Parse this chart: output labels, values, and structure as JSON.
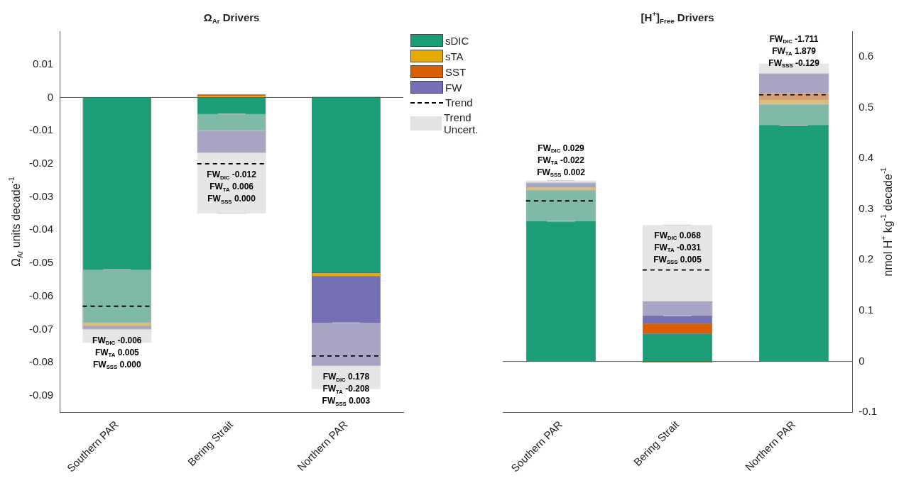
{
  "chart_data": [
    {
      "type": "bar",
      "title": "Ω$_{Ar}$ Drivers",
      "ylabel": "Ω$_{Ar}$ units decade$^{-1}$",
      "categories": [
        "Southern PAR",
        "Bering Strait",
        "Northern PAR"
      ],
      "stacked": true,
      "ylim": [
        -0.095,
        0.02
      ],
      "yticks": [
        -0.09,
        -0.08,
        -0.07,
        -0.06,
        -0.05,
        -0.04,
        -0.03,
        -0.02,
        -0.01,
        0,
        0.01
      ],
      "legend": "right",
      "line_style": "dashed",
      "series": [
        {
          "name": "sDIC",
          "color": "#1b9e77",
          "values": [
            -0.068,
            -0.01,
            -0.053
          ]
        },
        {
          "name": "sTA",
          "color": "#e6ab02",
          "values": [
            -0.001,
            0.0004,
            -0.001
          ]
        },
        {
          "name": "SST",
          "color": "#d95f02",
          "values": [
            0,
            0.0005,
            0.0002
          ]
        },
        {
          "name": "FW",
          "color": "#7570b3",
          "values": [
            -0.001,
            -0.0067,
            -0.027
          ]
        },
        {
          "name": "Trend Uncert.",
          "type": "box",
          "color": "#d2d2d2",
          "boxes": [
            {
              "low": -0.074,
              "q1": -0.074,
              "median": -0.063,
              "q3": -0.052,
              "high": -0.052
            },
            {
              "low": -0.035,
              "q1": -0.035,
              "median": -0.02,
              "q3": -0.005,
              "high": -0.005
            },
            {
              "low": -0.088,
              "q1": -0.088,
              "median": -0.078,
              "q3": -0.068,
              "high": -0.068
            }
          ]
        }
      ],
      "annotations": [
        "Trend",
        "FW$_{DIC}$ -0.006",
        "FW$_{TA}$ 0.005",
        "FW$_{SSS}$ 0.000",
        "FW$_{DIC}$ -0.012",
        "FW$_{TA}$ 0.006",
        "FW$_{SSS}$ 0.000",
        "FW$_{DIC}$ 0.178",
        "FW$_{TA}$ -0.208",
        "FW$_{SSS}$ 0.003"
      ]
    },
    {
      "type": "bar",
      "title": "[H$^{+}$]$_{Free}$ Drivers",
      "y2label": "nmol H$^{+}$ kg$^{-1}$ decade$^{-1}$",
      "categories": [
        "Southern PAR",
        "Bering Strait",
        "Northern PAR"
      ],
      "stacked": true,
      "y2lim": [
        -0.1,
        0.65
      ],
      "y2ticks": [
        -0.1,
        0,
        0.1,
        0.2,
        0.3,
        0.4,
        0.5,
        0.6
      ],
      "line_style": "dashed",
      "series": [
        {
          "axis": "y2",
          "color": "#1b9e77",
          "values": [
            0.337,
            0.055,
            0.507
          ]
        },
        {
          "axis": "y2",
          "color": "#e6ab02",
          "values": [
            0.006,
            -0.002,
            0.007
          ]
        },
        {
          "axis": "y2",
          "color": "#d95f02",
          "values": [
            0,
            0.02,
            0.014
          ]
        },
        {
          "axis": "y2",
          "color": "#7570b3",
          "values": [
            0.009,
            0.043,
            0.039
          ]
        },
        {
          "type": "box",
          "axis": "y2",
          "color": "#d2d2d2",
          "boxes": [
            {
              "low": 0.276,
              "q1": 0.276,
              "median": 0.316,
              "q3": 0.356,
              "high": 0.356
            },
            {
              "low": 0.09,
              "q1": 0.09,
              "median": 0.18,
              "q3": 0.2685,
              "high": 0.2685
            },
            {
              "low": 0.465,
              "q1": 0.465,
              "median": 0.525,
              "q3": 0.586,
              "high": 0.586
            }
          ]
        }
      ],
      "annotations": [
        "FW$_{DIC}$ 0.029",
        "FW$_{TA}$ -0.022",
        "FW$_{SSS}$ 0.002",
        "FW$_{DIC}$ 0.068",
        "FW$_{TA}$ -0.031",
        "FW$_{SSS}$ 0.005",
        "FW$_{DIC}$ -1.711",
        "FW$_{TA}$ 1.879",
        "FW$_{SSS}$ -0.129"
      ]
    }
  ]
}
